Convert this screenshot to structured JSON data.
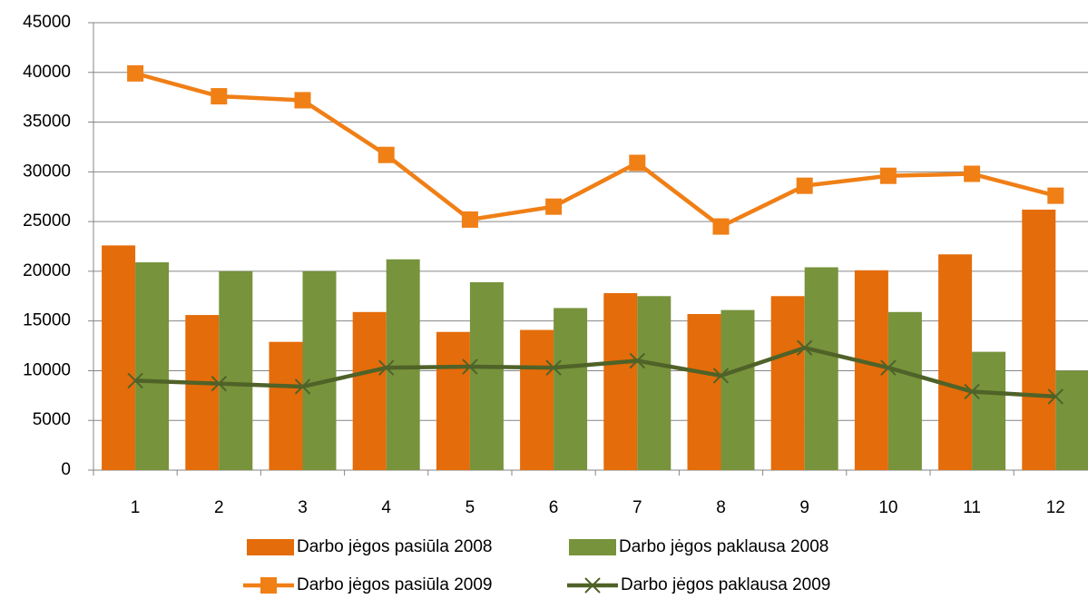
{
  "chart_data": {
    "type": "bar",
    "categories": [
      "1",
      "2",
      "3",
      "4",
      "5",
      "6",
      "7",
      "8",
      "9",
      "10",
      "11",
      "12"
    ],
    "ylim": [
      0,
      45000
    ],
    "yticks": [
      0,
      5000,
      10000,
      15000,
      20000,
      25000,
      30000,
      35000,
      40000,
      45000
    ],
    "grid": true,
    "series": [
      {
        "name": "Darbo jėgos pasiūla 2008",
        "type": "bar",
        "color": "#e46c0a",
        "values": [
          22600,
          15600,
          12900,
          15900,
          13900,
          14100,
          17800,
          15700,
          17500,
          20100,
          21700,
          26200
        ]
      },
      {
        "name": "Darbo jėgos paklausa 2008",
        "type": "bar",
        "color": "#77933c",
        "values": [
          20900,
          20000,
          20000,
          21200,
          18900,
          16300,
          17500,
          16100,
          20400,
          15900,
          11900,
          10000
        ]
      },
      {
        "name": "Darbo jėgos pasiūla 2009",
        "type": "line",
        "marker": "square",
        "color": "#f07f16",
        "values": [
          39900,
          37600,
          37200,
          31700,
          25200,
          26500,
          30900,
          24500,
          28600,
          29600,
          29800,
          27600
        ]
      },
      {
        "name": "Darbo jėgos paklausa 2009",
        "type": "line",
        "marker": "x",
        "color": "#4f6228",
        "values": [
          9000,
          8700,
          8400,
          10300,
          10400,
          10300,
          11000,
          9500,
          12300,
          10300,
          7900,
          7400
        ]
      }
    ]
  }
}
